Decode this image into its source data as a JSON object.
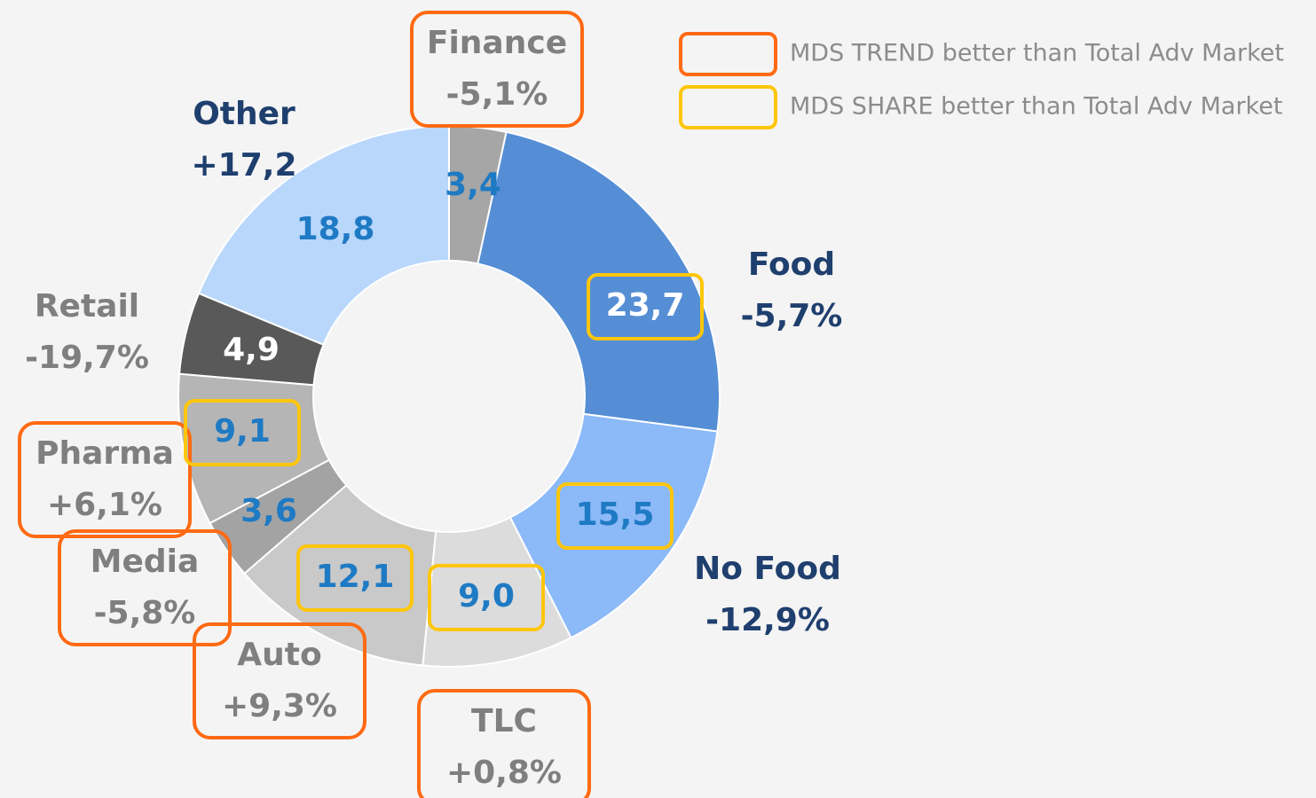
{
  "chart_data": {
    "type": "donut",
    "categories": [
      "Finance",
      "Food",
      "No Food",
      "TLC",
      "Auto",
      "Media",
      "Pharma",
      "Retail",
      "Other"
    ],
    "values": [
      3.4,
      23.7,
      15.5,
      9.0,
      12.1,
      3.6,
      9.1,
      4.9,
      18.8
    ],
    "value_labels": [
      "3,4",
      "23,7",
      "15,5",
      "9,0",
      "12,1",
      "3,6",
      "9,1",
      "4,9",
      "18,8"
    ],
    "trend_labels": [
      "-5,1%",
      "-5,7%",
      "-12,9%",
      "+0,8%",
      "+9,3%",
      "-5,8%",
      "+6,1%",
      "-19,7%",
      "+17,2"
    ],
    "colors": [
      "#a6a6a6",
      "#558ed5",
      "#8cb9f7",
      "#dcdcdc",
      "#c9c9c9",
      "#a3a3a3",
      "#b5b5b5",
      "#595959",
      "#b9d7fb"
    ],
    "category_label_colors": [
      "#7f7f7f",
      "#1f3f6e",
      "#1f3f6e",
      "#7f7f7f",
      "#7f7f7f",
      "#7f7f7f",
      "#7f7f7f",
      "#7f7f7f",
      "#1f3f6e"
    ],
    "value_label_colors": [
      "#1f7ac4",
      "#ffffff",
      "#1f7ac4",
      "#1f7ac4",
      "#1f7ac4",
      "#1f7ac4",
      "#1f7ac4",
      "#ffffff",
      "#1f7ac4"
    ],
    "trend_better": [
      true,
      false,
      false,
      true,
      true,
      true,
      true,
      false,
      false
    ],
    "share_better": [
      false,
      true,
      true,
      true,
      true,
      false,
      true,
      false,
      false
    ],
    "legend": [
      {
        "label": "MDS TREND better than Total Adv Market",
        "color": "#ff6a13"
      },
      {
        "label": "MDS SHARE better than Total Adv Market",
        "color": "#ffc60b"
      }
    ]
  }
}
